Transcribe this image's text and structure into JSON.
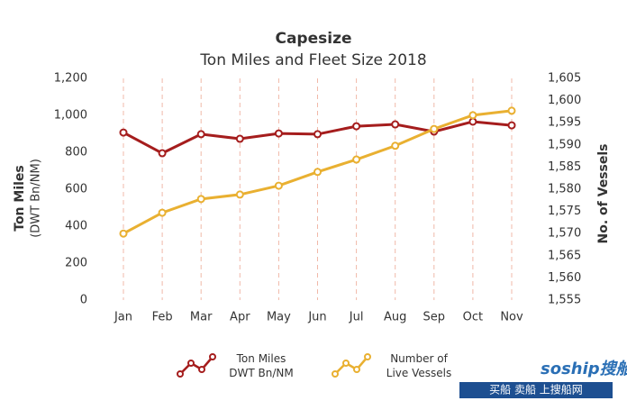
{
  "chart_data": {
    "type": "line",
    "title": "Capesize",
    "subtitle": "Ton Miles and Fleet Size 2018",
    "y_label": "Ton Miles",
    "y_label_sub": "(DWT Bn/NM)",
    "y2_label": "No. of Vessels",
    "categories": [
      "Jan",
      "Feb",
      "Mar",
      "Apr",
      "May",
      "Jun",
      "Jul",
      "Aug",
      "Sep",
      "Oct",
      "Nov"
    ],
    "series": [
      {
        "name": "Ton Miles\nDWT Bn/NM",
        "color": "#a51d1d",
        "values": [
          907,
          795,
          898,
          873,
          902,
          898,
          941,
          951,
          912,
          966,
          946
        ]
      },
      {
        "name": "Number of\nLive Vessels",
        "color": "#e9b031",
        "axis": "y2",
        "values": [
          1570,
          1574.7,
          1577.8,
          1578.8,
          1580.8,
          1583.9,
          1586.7,
          1589.8,
          1593.6,
          1596.7,
          1597.7
        ]
      }
    ],
    "ylim": [
      0,
      1200
    ],
    "yticks": [
      0,
      200,
      400,
      600,
      800,
      {
        "value": 1000,
        "label": "1,000"
      },
      {
        "value": 1200,
        "label": "1,200"
      }
    ],
    "y2lim": [
      1555,
      1605
    ],
    "y2ticks": [
      {
        "value": 1555,
        "label": "1,555"
      },
      {
        "value": 1560,
        "label": "1,560"
      },
      {
        "value": 1565,
        "label": "1,565"
      },
      {
        "value": 1570,
        "label": "1,570"
      },
      {
        "value": 1575,
        "label": "1,575"
      },
      {
        "value": 1580,
        "label": "1,580"
      },
      {
        "value": 1585,
        "label": "1,585"
      },
      {
        "value": 1590,
        "label": "1,590"
      },
      {
        "value": 1595,
        "label": "1,595"
      },
      {
        "value": 1600,
        "label": "1,600"
      },
      {
        "value": 1605,
        "label": "1,605"
      }
    ],
    "category_grid": true
  },
  "watermark": {
    "logo": "soship搜船",
    "links": "买船  卖船  上搜船网"
  }
}
